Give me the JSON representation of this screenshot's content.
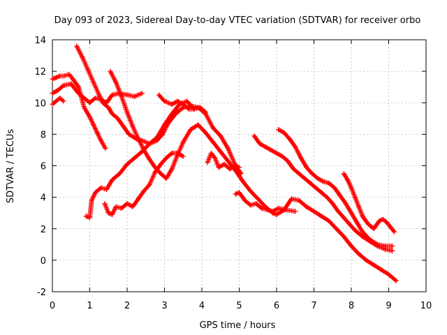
{
  "chart_data": {
    "type": "scatter",
    "title": "Day 093 of 2023, Sidereal Day-to-day VTEC variation (SDTVAR) for receiver orbo",
    "xlabel": "GPS time / hours",
    "ylabel": "SDTVAR / TECUs",
    "xlim": [
      0,
      10
    ],
    "ylim": [
      -2,
      14
    ],
    "x_ticks": [
      "0",
      "1",
      "2",
      "3",
      "4",
      "5",
      "6",
      "7",
      "8",
      "9",
      "10"
    ],
    "y_ticks": [
      "-2",
      "0",
      "2",
      "4",
      "6",
      "8",
      "10",
      "12",
      "14"
    ],
    "grid": true,
    "marker": "plus",
    "color": "#ff0000",
    "series": [
      {
        "x": [
          0.65,
          0.8,
          0.95,
          1.1,
          1.25,
          1.35,
          1.5,
          1.6,
          1.75,
          1.9,
          2.05,
          2.25,
          2.4,
          2.6,
          2.8,
          2.95,
          3.1,
          3.3,
          3.5,
          3.7,
          3.9,
          4.1,
          4.3,
          4.5,
          4.7,
          4.9,
          5.05
        ],
        "y": [
          13.6,
          12.9,
          12.1,
          11.3,
          10.5,
          10.0,
          9.7,
          9.3,
          9.0,
          8.5,
          8.0,
          7.7,
          7.6,
          7.4,
          7.6,
          8.0,
          8.7,
          9.3,
          9.7,
          9.8,
          9.7,
          9.3,
          8.4,
          7.9,
          7.1,
          6.0,
          5.5
        ]
      },
      {
        "x": [
          1.55,
          1.7,
          1.85,
          2.0,
          2.15,
          2.3,
          2.45,
          2.6,
          2.75,
          2.9,
          3.05,
          3.2,
          3.35,
          3.5,
          3.7,
          3.9,
          4.1,
          4.3,
          4.5,
          4.7,
          4.9,
          5.1,
          5.3,
          5.5,
          5.7,
          5.9,
          6.0,
          6.2,
          6.4,
          6.6,
          6.8,
          7.0,
          7.2,
          7.4,
          7.6,
          7.8,
          8.0,
          8.2,
          8.4,
          8.6,
          8.8,
          9.0,
          9.2
        ],
        "y": [
          12.0,
          11.3,
          10.4,
          9.4,
          8.5,
          7.7,
          7.0,
          6.4,
          5.9,
          5.5,
          5.2,
          5.8,
          6.7,
          7.5,
          8.3,
          8.6,
          8.1,
          7.5,
          6.9,
          6.3,
          5.7,
          5.0,
          4.4,
          3.9,
          3.4,
          3.0,
          2.9,
          3.2,
          3.9,
          3.8,
          3.4,
          3.1,
          2.8,
          2.5,
          2.0,
          1.5,
          0.9,
          0.4,
          0.0,
          -0.3,
          -0.6,
          -0.9,
          -1.3
        ]
      },
      {
        "x": [
          0.0,
          0.15,
          0.3,
          0.5,
          0.7,
          0.85,
          1.0,
          1.15,
          1.3,
          1.45,
          1.6,
          1.8,
          2.0,
          2.2,
          2.4
        ],
        "y": [
          10.6,
          10.8,
          11.1,
          11.2,
          10.6,
          10.3,
          10.0,
          10.3,
          10.2,
          10.0,
          10.5,
          10.6,
          10.5,
          10.4,
          10.6
        ]
      },
      {
        "x": [
          0.0,
          0.1,
          0.2,
          0.3,
          0.45,
          0.55,
          0.7,
          0.85,
          1.0,
          1.1,
          1.2,
          1.3,
          1.42
        ],
        "y": [
          11.5,
          11.6,
          11.7,
          11.7,
          11.8,
          11.5,
          11.0,
          9.7,
          9.1,
          8.6,
          8.1,
          7.6,
          7.1
        ]
      },
      {
        "x": [
          0.0,
          0.1,
          0.2,
          0.3
        ],
        "y": [
          9.9,
          10.1,
          10.3,
          10.1
        ]
      },
      {
        "x": [
          0.9,
          1.0,
          1.05,
          1.15,
          1.3,
          1.45,
          1.6,
          1.8,
          2.0,
          2.2,
          2.4,
          2.6,
          2.8,
          3.0,
          3.2,
          3.4,
          3.6,
          3.8
        ],
        "y": [
          2.8,
          2.7,
          3.8,
          4.3,
          4.6,
          4.5,
          5.1,
          5.5,
          6.1,
          6.5,
          6.9,
          7.4,
          7.8,
          8.6,
          9.3,
          9.9,
          10.1,
          9.6
        ]
      },
      {
        "x": [
          1.4,
          1.5,
          1.6,
          1.7,
          1.85,
          2.0,
          2.15,
          2.3,
          2.45,
          2.6,
          2.75,
          2.9,
          3.05,
          3.2,
          3.35,
          3.5
        ],
        "y": [
          3.6,
          3.0,
          2.9,
          3.4,
          3.3,
          3.6,
          3.4,
          3.9,
          4.4,
          4.8,
          5.6,
          6.1,
          6.5,
          6.8,
          6.8,
          6.6
        ]
      },
      {
        "x": [
          2.85,
          3.0,
          3.2,
          3.35,
          3.5,
          3.65,
          3.8,
          3.95,
          4.1
        ],
        "y": [
          10.5,
          10.1,
          9.9,
          10.1,
          9.9,
          9.6,
          9.6,
          9.7,
          9.4
        ]
      },
      {
        "x": [
          4.15,
          4.25,
          4.35,
          4.45,
          4.6,
          4.75,
          4.9,
          5.0
        ],
        "y": [
          6.2,
          6.8,
          6.5,
          5.9,
          6.1,
          5.8,
          6.0,
          5.9
        ]
      },
      {
        "x": [
          4.9,
          5.0,
          5.15,
          5.3,
          5.45,
          5.6,
          5.75,
          5.9,
          6.05,
          6.25,
          6.5
        ],
        "y": [
          4.2,
          4.3,
          3.8,
          3.5,
          3.6,
          3.3,
          3.2,
          3.1,
          3.3,
          3.2,
          3.1
        ]
      },
      {
        "x": [
          5.4,
          5.55,
          5.7,
          5.85,
          6.0,
          6.15,
          6.3,
          6.45,
          6.6,
          6.75,
          6.9,
          7.05,
          7.2,
          7.35,
          7.5,
          7.65,
          7.8,
          7.95,
          8.1,
          8.3,
          8.5,
          8.7,
          8.9,
          9.1
        ],
        "y": [
          7.9,
          7.4,
          7.2,
          7.0,
          6.8,
          6.6,
          6.3,
          5.8,
          5.5,
          5.2,
          4.9,
          4.6,
          4.3,
          4.0,
          3.6,
          3.1,
          2.7,
          2.3,
          1.9,
          1.5,
          1.2,
          0.9,
          0.7,
          0.6
        ]
      },
      {
        "x": [
          6.05,
          6.2,
          6.35,
          6.5,
          6.65,
          6.8,
          6.95,
          7.1,
          7.25,
          7.4,
          7.55,
          7.7,
          7.85,
          8.0,
          8.15,
          8.3,
          8.5,
          8.7,
          8.9,
          9.1
        ],
        "y": [
          8.3,
          8.1,
          7.7,
          7.2,
          6.5,
          5.9,
          5.5,
          5.2,
          5.0,
          4.9,
          4.6,
          4.1,
          3.6,
          3.0,
          2.4,
          1.8,
          1.3,
          1.0,
          0.9,
          0.9
        ]
      },
      {
        "x": [
          7.8,
          7.9,
          8.0,
          8.1,
          8.2,
          8.3,
          8.45,
          8.6,
          8.75,
          8.85,
          8.95,
          9.05,
          9.15
        ],
        "y": [
          5.5,
          5.1,
          4.6,
          4.0,
          3.4,
          2.8,
          2.3,
          2.0,
          2.5,
          2.6,
          2.4,
          2.1,
          1.8
        ]
      }
    ]
  }
}
